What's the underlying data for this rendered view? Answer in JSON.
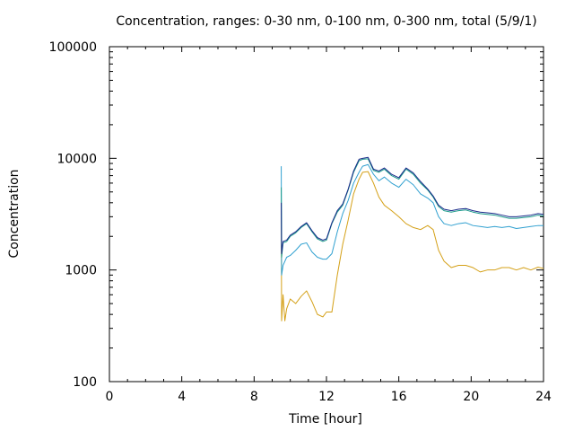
{
  "chart_data": {
    "type": "line",
    "title": "Concentration, ranges: 0-30 nm, 0-100 nm, 0-300 nm, total (5/9/1)",
    "xlabel": "Time [hour]",
    "ylabel": "Concentration",
    "xlim": [
      0,
      24
    ],
    "ylim": [
      100,
      100000
    ],
    "yscale": "log",
    "xticks": [
      0,
      4,
      8,
      12,
      16,
      20,
      24
    ],
    "xtick_labels": [
      "0",
      "4",
      "8",
      "12",
      "16",
      "20",
      "24"
    ],
    "yticks": [
      100,
      1000,
      10000,
      100000
    ],
    "ytick_labels": [
      "100",
      "1000",
      "10000",
      "100000"
    ],
    "grid": false,
    "legend": "none",
    "series": [
      {
        "color": "#d4a017",
        "x": [
          9.5,
          9.52,
          9.6,
          9.7,
          9.8,
          10.0,
          10.3,
          10.6,
          10.9,
          11.2,
          11.5,
          11.8,
          12.0,
          12.3,
          12.6,
          12.9,
          13.2,
          13.5,
          13.8,
          14.0,
          14.3,
          14.6,
          14.9,
          15.2,
          15.6,
          16.0,
          16.4,
          16.8,
          17.2,
          17.6,
          17.9,
          18.2,
          18.5,
          18.9,
          19.3,
          19.7,
          20.1,
          20.5,
          20.9,
          21.3,
          21.7,
          22.1,
          22.5,
          22.9,
          23.3,
          23.7,
          24.0
        ],
        "y": [
          4000,
          350,
          600,
          350,
          450,
          550,
          500,
          580,
          650,
          520,
          400,
          380,
          420,
          420,
          900,
          1700,
          2800,
          4800,
          6500,
          7500,
          7600,
          6000,
          4500,
          3800,
          3400,
          3000,
          2600,
          2400,
          2300,
          2500,
          2300,
          1500,
          1200,
          1050,
          1100,
          1100,
          1050,
          960,
          1000,
          1000,
          1050,
          1050,
          1000,
          1050,
          1000,
          1060,
          1030
        ]
      },
      {
        "color": "#30a0d0",
        "x": [
          9.5,
          9.52,
          9.6,
          9.8,
          10.0,
          10.3,
          10.6,
          10.9,
          11.2,
          11.5,
          11.8,
          12.0,
          12.3,
          12.6,
          12.9,
          13.2,
          13.5,
          13.8,
          14.0,
          14.3,
          14.6,
          14.9,
          15.2,
          15.6,
          16.0,
          16.4,
          16.8,
          17.2,
          17.6,
          17.9,
          18.2,
          18.5,
          18.9,
          19.3,
          19.7,
          20.1,
          20.5,
          20.9,
          21.3,
          21.7,
          22.1,
          22.5,
          22.9,
          23.3,
          23.7,
          24.0
        ],
        "y": [
          8500,
          900,
          1100,
          1300,
          1350,
          1500,
          1700,
          1750,
          1450,
          1300,
          1250,
          1250,
          1400,
          2200,
          3200,
          4200,
          6000,
          7500,
          8500,
          8800,
          7200,
          6300,
          6800,
          6000,
          5500,
          6500,
          5800,
          4800,
          4400,
          4000,
          3000,
          2600,
          2500,
          2600,
          2650,
          2500,
          2450,
          2400,
          2450,
          2400,
          2450,
          2350,
          2400,
          2450,
          2500,
          2500
        ]
      },
      {
        "color": "#1a9a8a",
        "x": [
          9.5,
          9.52,
          9.6,
          9.8,
          10.0,
          10.3,
          10.6,
          10.9,
          11.2,
          11.5,
          11.8,
          12.0,
          12.3,
          12.6,
          12.9,
          13.2,
          13.5,
          13.8,
          14.0,
          14.3,
          14.6,
          14.9,
          15.2,
          15.6,
          16.0,
          16.4,
          16.8,
          17.2,
          17.6,
          17.9,
          18.2,
          18.5,
          18.9,
          19.3,
          19.7,
          20.1,
          20.5,
          20.9,
          21.3,
          21.7,
          22.1,
          22.5,
          22.9,
          23.3,
          23.7,
          24.0
        ],
        "y": [
          5500,
          1300,
          1750,
          1800,
          2000,
          2150,
          2400,
          2600,
          2200,
          1900,
          1800,
          1850,
          2600,
          3300,
          3800,
          5200,
          7500,
          9500,
          9800,
          9900,
          7800,
          7500,
          8000,
          7000,
          6500,
          8000,
          7200,
          6000,
          5200,
          4500,
          3700,
          3400,
          3300,
          3400,
          3450,
          3300,
          3200,
          3150,
          3100,
          3000,
          2900,
          2900,
          2950,
          3000,
          3100,
          3050
        ]
      },
      {
        "color": "#1a2a8a",
        "x": [
          9.5,
          9.52,
          9.6,
          9.8,
          10.0,
          10.3,
          10.6,
          10.9,
          11.2,
          11.5,
          11.8,
          12.0,
          12.3,
          12.6,
          12.9,
          13.2,
          13.5,
          13.8,
          14.0,
          14.3,
          14.6,
          14.9,
          15.2,
          15.6,
          16.0,
          16.4,
          16.8,
          17.2,
          17.6,
          17.9,
          18.2,
          18.5,
          18.9,
          19.3,
          19.7,
          20.1,
          20.5,
          20.9,
          21.3,
          21.7,
          22.1,
          22.5,
          22.9,
          23.3,
          23.7,
          24.0
        ],
        "y": [
          4000,
          1400,
          1800,
          1850,
          2050,
          2200,
          2450,
          2650,
          2250,
          1950,
          1850,
          1900,
          2650,
          3400,
          3900,
          5300,
          7700,
          9800,
          10000,
          10200,
          8000,
          7700,
          8200,
          7200,
          6700,
          8200,
          7400,
          6200,
          5300,
          4600,
          3800,
          3500,
          3400,
          3500,
          3550,
          3400,
          3300,
          3250,
          3200,
          3100,
          3000,
          3000,
          3050,
          3100,
          3200,
          3150
        ]
      }
    ]
  }
}
